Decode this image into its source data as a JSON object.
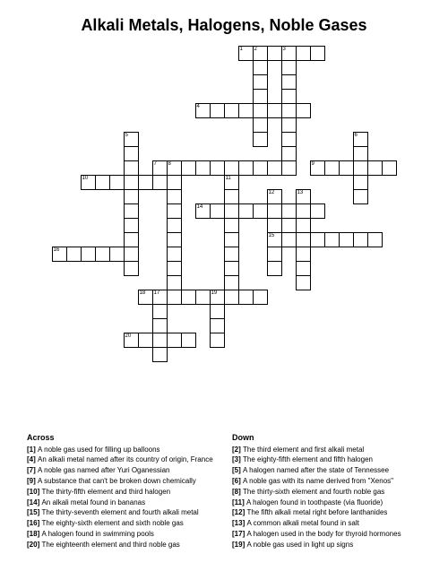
{
  "title": "Alkali Metals, Halogens, Noble Gases",
  "grid": {
    "rows": 26,
    "cols": 24,
    "cell_size": 16,
    "border_color": "#000000",
    "background_color": "#ffffff",
    "cells": [
      {
        "r": 0,
        "c": 13,
        "n": 1
      },
      {
        "r": 0,
        "c": 14,
        "n": 2
      },
      {
        "r": 0,
        "c": 15
      },
      {
        "r": 0,
        "c": 16,
        "n": 3
      },
      {
        "r": 0,
        "c": 17
      },
      {
        "r": 0,
        "c": 18
      },
      {
        "r": 1,
        "c": 14
      },
      {
        "r": 1,
        "c": 16
      },
      {
        "r": 2,
        "c": 14
      },
      {
        "r": 2,
        "c": 16
      },
      {
        "r": 3,
        "c": 14
      },
      {
        "r": 3,
        "c": 16
      },
      {
        "r": 4,
        "c": 10,
        "n": 4
      },
      {
        "r": 4,
        "c": 11
      },
      {
        "r": 4,
        "c": 12
      },
      {
        "r": 4,
        "c": 13
      },
      {
        "r": 4,
        "c": 14
      },
      {
        "r": 4,
        "c": 15
      },
      {
        "r": 4,
        "c": 16
      },
      {
        "r": 4,
        "c": 17
      },
      {
        "r": 5,
        "c": 14
      },
      {
        "r": 5,
        "c": 16
      },
      {
        "r": 6,
        "c": 5,
        "n": 5
      },
      {
        "r": 6,
        "c": 14
      },
      {
        "r": 6,
        "c": 16
      },
      {
        "r": 6,
        "c": 21,
        "n": 6
      },
      {
        "r": 7,
        "c": 5
      },
      {
        "r": 7,
        "c": 16
      },
      {
        "r": 7,
        "c": 21
      },
      {
        "r": 8,
        "c": 5
      },
      {
        "r": 8,
        "c": 7,
        "n": 7
      },
      {
        "r": 8,
        "c": 8,
        "n": 8
      },
      {
        "r": 8,
        "c": 9
      },
      {
        "r": 8,
        "c": 10
      },
      {
        "r": 8,
        "c": 11
      },
      {
        "r": 8,
        "c": 12
      },
      {
        "r": 8,
        "c": 13
      },
      {
        "r": 8,
        "c": 14
      },
      {
        "r": 8,
        "c": 15
      },
      {
        "r": 8,
        "c": 16
      },
      {
        "r": 8,
        "c": 18,
        "n": 9
      },
      {
        "r": 8,
        "c": 19
      },
      {
        "r": 8,
        "c": 20
      },
      {
        "r": 8,
        "c": 21
      },
      {
        "r": 8,
        "c": 22
      },
      {
        "r": 8,
        "c": 23
      },
      {
        "r": 8,
        "c": 24
      },
      {
        "r": 9,
        "c": 2,
        "n": 10
      },
      {
        "r": 9,
        "c": 3
      },
      {
        "r": 9,
        "c": 4
      },
      {
        "r": 9,
        "c": 5
      },
      {
        "r": 9,
        "c": 6
      },
      {
        "r": 9,
        "c": 7
      },
      {
        "r": 9,
        "c": 8
      },
      {
        "r": 9,
        "c": 12,
        "n": 11
      },
      {
        "r": 9,
        "c": 21
      },
      {
        "r": 10,
        "c": 5
      },
      {
        "r": 10,
        "c": 8
      },
      {
        "r": 10,
        "c": 12
      },
      {
        "r": 10,
        "c": 15,
        "n": 12
      },
      {
        "r": 10,
        "c": 17,
        "n": 13
      },
      {
        "r": 10,
        "c": 21
      },
      {
        "r": 11,
        "c": 5
      },
      {
        "r": 11,
        "c": 8
      },
      {
        "r": 11,
        "c": 10,
        "n": 14
      },
      {
        "r": 11,
        "c": 11
      },
      {
        "r": 11,
        "c": 12
      },
      {
        "r": 11,
        "c": 13
      },
      {
        "r": 11,
        "c": 14
      },
      {
        "r": 11,
        "c": 15
      },
      {
        "r": 11,
        "c": 16
      },
      {
        "r": 11,
        "c": 17
      },
      {
        "r": 11,
        "c": 18
      },
      {
        "r": 12,
        "c": 5
      },
      {
        "r": 12,
        "c": 8
      },
      {
        "r": 12,
        "c": 12
      },
      {
        "r": 12,
        "c": 15
      },
      {
        "r": 12,
        "c": 17
      },
      {
        "r": 13,
        "c": 5
      },
      {
        "r": 13,
        "c": 8
      },
      {
        "r": 13,
        "c": 12
      },
      {
        "r": 13,
        "c": 15,
        "n": 15
      },
      {
        "r": 13,
        "c": 16
      },
      {
        "r": 13,
        "c": 17
      },
      {
        "r": 13,
        "c": 18
      },
      {
        "r": 13,
        "c": 19
      },
      {
        "r": 13,
        "c": 20
      },
      {
        "r": 13,
        "c": 21
      },
      {
        "r": 13,
        "c": 22
      },
      {
        "r": 14,
        "c": 0,
        "n": 16
      },
      {
        "r": 14,
        "c": 1
      },
      {
        "r": 14,
        "c": 2
      },
      {
        "r": 14,
        "c": 3
      },
      {
        "r": 14,
        "c": 4
      },
      {
        "r": 14,
        "c": 5
      },
      {
        "r": 14,
        "c": 8
      },
      {
        "r": 14,
        "c": 12
      },
      {
        "r": 14,
        "c": 15
      },
      {
        "r": 14,
        "c": 17
      },
      {
        "r": 15,
        "c": 5
      },
      {
        "r": 15,
        "c": 8
      },
      {
        "r": 15,
        "c": 12
      },
      {
        "r": 15,
        "c": 15
      },
      {
        "r": 15,
        "c": 17
      },
      {
        "r": 16,
        "c": 8
      },
      {
        "r": 16,
        "c": 12
      },
      {
        "r": 16,
        "c": 17
      },
      {
        "r": 17,
        "c": 6,
        "n": 18
      },
      {
        "r": 17,
        "c": 7,
        "n": 17
      },
      {
        "r": 17,
        "c": 8
      },
      {
        "r": 17,
        "c": 9
      },
      {
        "r": 17,
        "c": 10
      },
      {
        "r": 17,
        "c": 11,
        "n": 19
      },
      {
        "r": 17,
        "c": 12
      },
      {
        "r": 17,
        "c": 13
      },
      {
        "r": 17,
        "c": 14
      },
      {
        "r": 18,
        "c": 7
      },
      {
        "r": 18,
        "c": 11
      },
      {
        "r": 19,
        "c": 7
      },
      {
        "r": 19,
        "c": 11
      },
      {
        "r": 20,
        "c": 5,
        "n": 20
      },
      {
        "r": 20,
        "c": 6
      },
      {
        "r": 20,
        "c": 7
      },
      {
        "r": 20,
        "c": 8
      },
      {
        "r": 20,
        "c": 9
      },
      {
        "r": 20,
        "c": 11
      },
      {
        "r": 21,
        "c": 7
      }
    ]
  },
  "clues": {
    "across_heading": "Across",
    "down_heading": "Down",
    "across": [
      {
        "n": "1",
        "text": "A noble gas used for filling up balloons"
      },
      {
        "n": "4",
        "text": "An alkali metal named after its country of origin, France"
      },
      {
        "n": "7",
        "text": "A noble gas named after Yuri Oganessian"
      },
      {
        "n": "9",
        "text": "A substance that can't be broken down chemically"
      },
      {
        "n": "10",
        "text": "The thirty-fifth element and third halogen"
      },
      {
        "n": "14",
        "text": "An alkali metal found in bananas"
      },
      {
        "n": "15",
        "text": "The thirty-seventh element and fourth alkali metal"
      },
      {
        "n": "16",
        "text": "The eighty-sixth element and sixth noble gas"
      },
      {
        "n": "18",
        "text": "A halogen found in swimming pools"
      },
      {
        "n": "20",
        "text": "The eighteenth element and third noble gas"
      }
    ],
    "down": [
      {
        "n": "2",
        "text": "The third element and first alkali metal"
      },
      {
        "n": "3",
        "text": "The eighty-fifth element and fifth halogen"
      },
      {
        "n": "5",
        "text": "A halogen named after the state of Tennessee"
      },
      {
        "n": "6",
        "text": "A noble gas with its name derived from \"Xenos\""
      },
      {
        "n": "8",
        "text": "The thirty-sixth element and fourth noble gas"
      },
      {
        "n": "11",
        "text": "A halogen found in toothpaste (via fluoride)"
      },
      {
        "n": "12",
        "text": "The fifth alkali metal right before lanthanides"
      },
      {
        "n": "13",
        "text": "A common alkali metal found in salt"
      },
      {
        "n": "17",
        "text": "A halogen used in the body for thyroid hormones"
      },
      {
        "n": "19",
        "text": "A noble gas used in light up signs"
      }
    ]
  },
  "colors": {
    "background": "#ffffff",
    "text": "#000000",
    "border": "#000000"
  },
  "typography": {
    "title_fontsize": 18,
    "title_weight": "bold",
    "clue_fontsize": 8,
    "clue_heading_fontsize": 9,
    "cell_number_fontsize": 6
  }
}
